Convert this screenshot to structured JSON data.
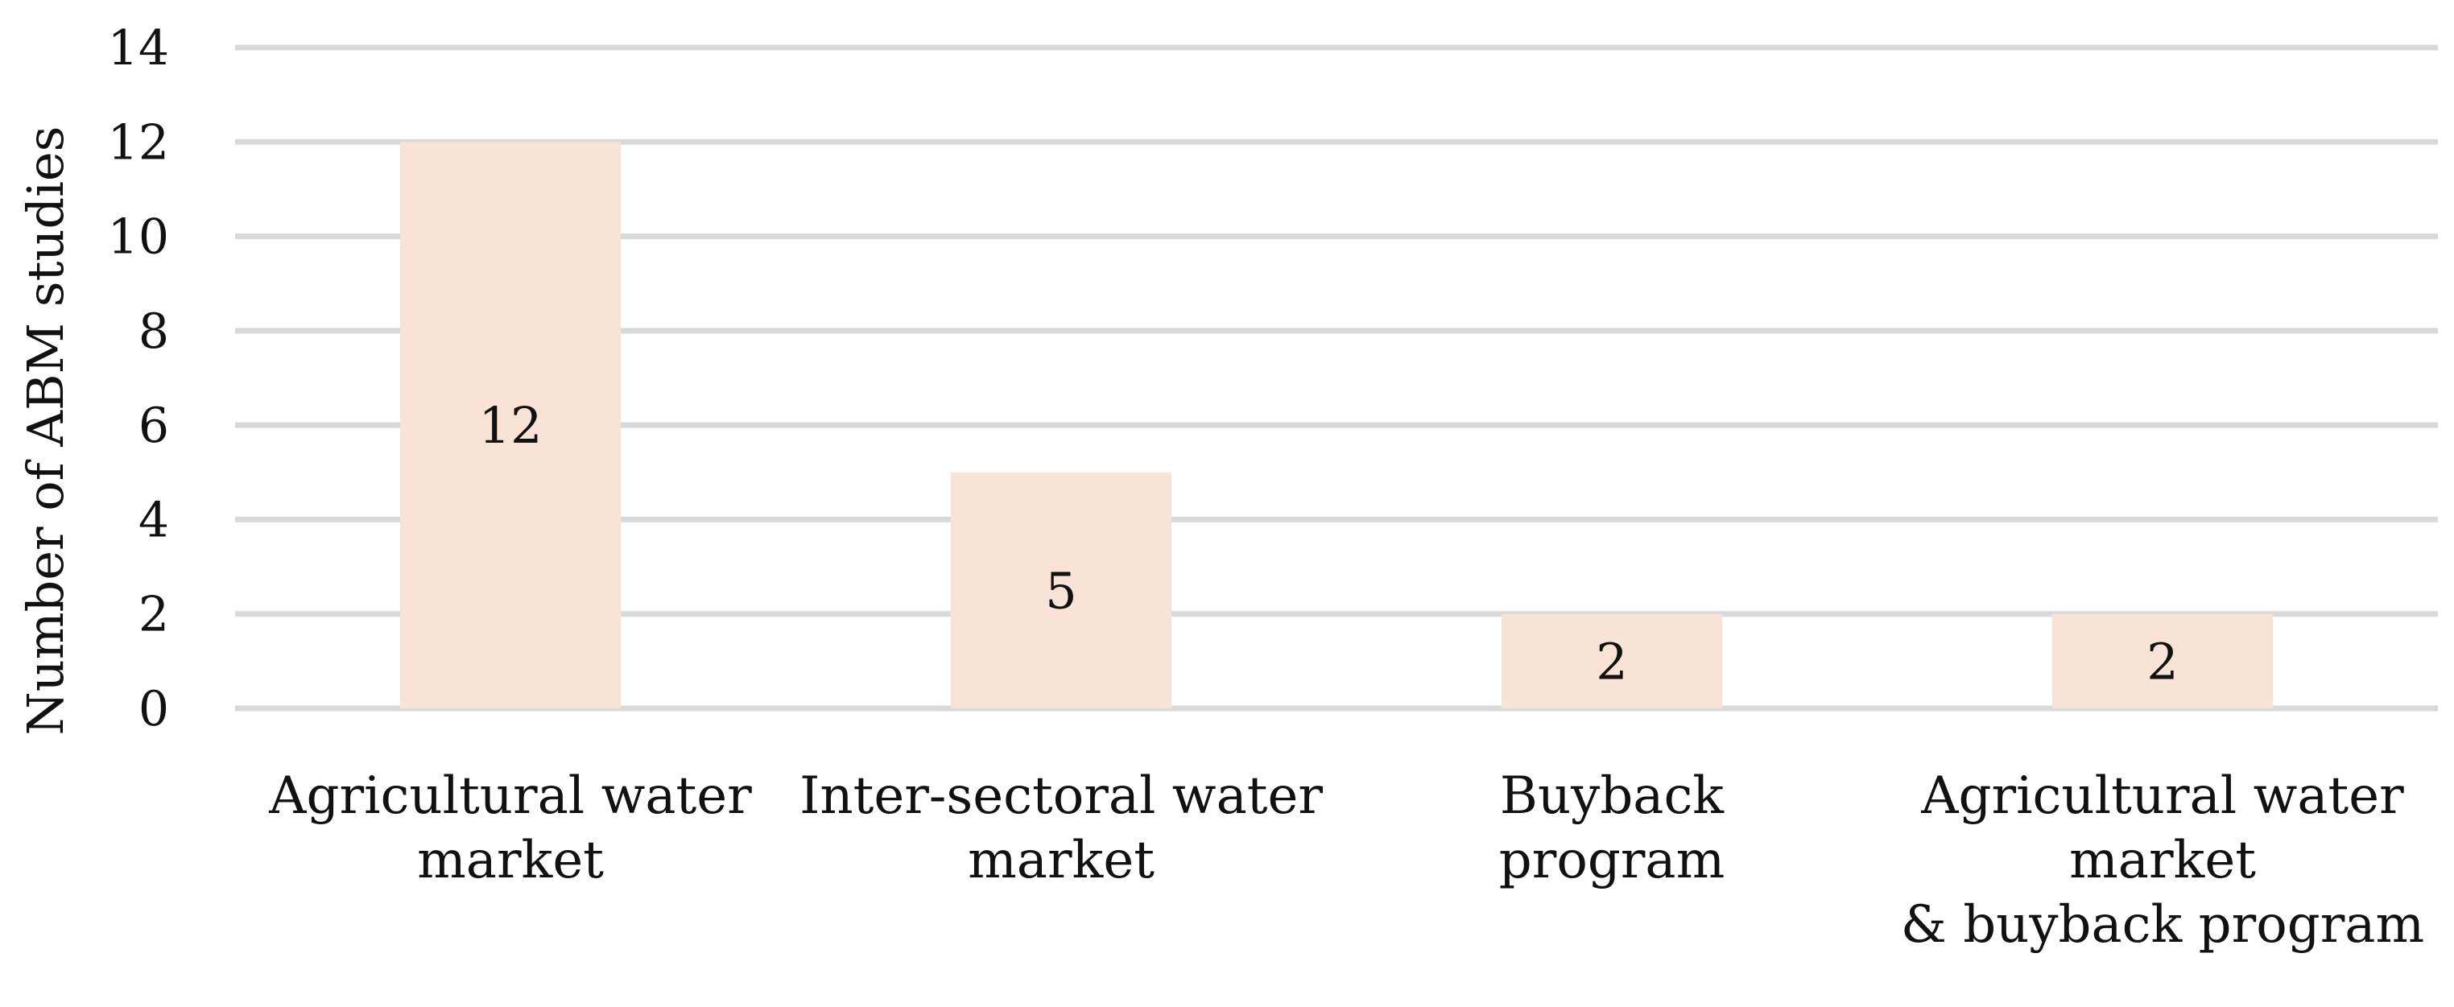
{
  "chart_data": {
    "type": "bar",
    "title": "",
    "xlabel": "",
    "ylabel": "Number of  ABM studies",
    "categories": [
      [
        "Agricultural water",
        "market"
      ],
      [
        "Inter-sectoral water",
        "market"
      ],
      [
        "Buyback",
        "program"
      ],
      [
        "Agricultural water",
        "market",
        "& buyback program"
      ]
    ],
    "values": [
      12,
      5,
      2,
      2
    ],
    "data_labels": [
      "12",
      "5",
      "2",
      "2"
    ],
    "ylim": [
      0,
      14
    ],
    "yticks": [
      0,
      2,
      4,
      6,
      8,
      10,
      12,
      14
    ],
    "grid": true,
    "legend": "none",
    "bar_color": "#f9e3d6",
    "grid_color": "#d9d9d9"
  }
}
